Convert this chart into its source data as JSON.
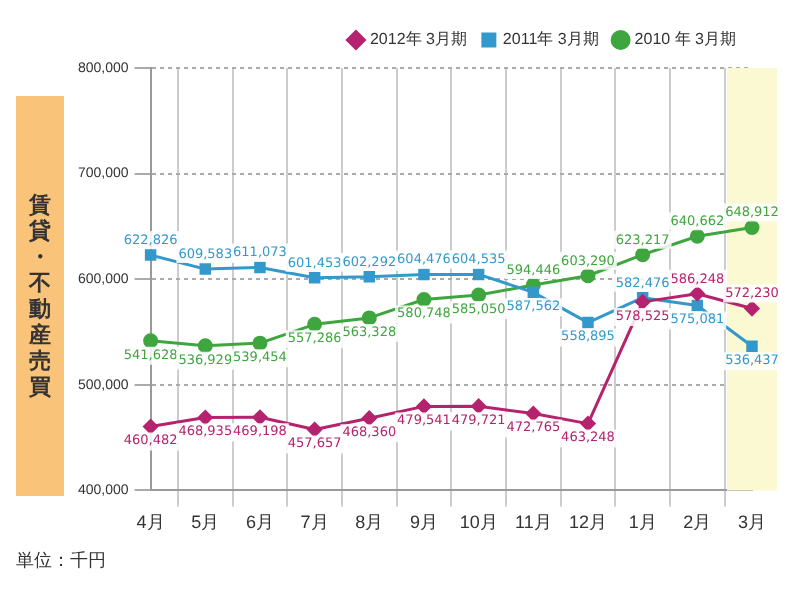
{
  "chart_data": {
    "type": "line",
    "ylabel": "賃貸・不動産売買",
    "annotations": [
      "単位：千円"
    ],
    "categories": [
      "4月",
      "5月",
      "6月",
      "7月",
      "8月",
      "9月",
      "10月",
      "11月",
      "12月",
      "1月",
      "2月",
      "3月"
    ],
    "series": [
      {
        "name": "2012年 3月期",
        "color": "#b5236f",
        "marker": "diamond",
        "values": [
          460482,
          468935,
          469198,
          457657,
          468360,
          479541,
          479721,
          472765,
          463248,
          578525,
          586248,
          572230
        ],
        "value_labels": [
          "460,482",
          "468,935",
          "469,198",
          "457,657",
          "468,360",
          "479,541",
          "479,721",
          "472,765",
          "463,248",
          "578,525",
          "586,248",
          "572,230"
        ]
      },
      {
        "name": "2011年 3月期",
        "color": "#3399cc",
        "marker": "square",
        "values": [
          622826,
          609583,
          611073,
          601453,
          602292,
          604476,
          604535,
          587562,
          558895,
          582476,
          575081,
          536437
        ],
        "value_labels": [
          "622,826",
          "609,583",
          "611,073",
          "601,453",
          "602,292",
          "604,476",
          "604,535",
          "587,562",
          "558,895",
          "582,476",
          "575,081",
          "536,437"
        ]
      },
      {
        "name": "2010 年 3月期",
        "color": "#3fa63f",
        "marker": "circle",
        "values": [
          541628,
          536929,
          539454,
          557286,
          563328,
          580748,
          585050,
          594446,
          603290,
          623217,
          640662,
          648912
        ],
        "value_labels": [
          "541,628",
          "536,929",
          "539,454",
          "557,286",
          "563,328",
          "580,748",
          "585,050",
          "594,446",
          "603,290",
          "623,217",
          "640,662",
          "648,912"
        ]
      }
    ],
    "ylim": [
      400000,
      800000
    ],
    "yticks": [
      {
        "value": 400000,
        "label": "400,000"
      },
      {
        "value": 500000,
        "label": "500,000"
      },
      {
        "value": 600000,
        "label": "600,000"
      },
      {
        "value": 700000,
        "label": "700,000"
      },
      {
        "value": 800000,
        "label": "800,000"
      }
    ],
    "bands": [
      {
        "axis": "x",
        "from": "3月",
        "to": "3月",
        "color": "#fbf9d2"
      }
    ],
    "grid": true,
    "legend": "top right"
  }
}
